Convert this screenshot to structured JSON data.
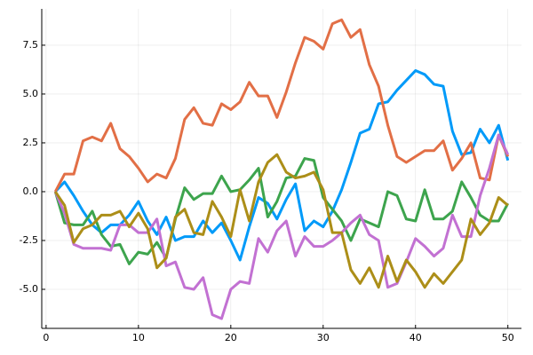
{
  "chart_data": {
    "type": "line",
    "x": [
      1,
      2,
      3,
      4,
      5,
      6,
      7,
      8,
      9,
      10,
      11,
      12,
      13,
      14,
      15,
      16,
      17,
      18,
      19,
      20,
      21,
      22,
      23,
      24,
      25,
      26,
      27,
      28,
      29,
      30,
      31,
      32,
      33,
      34,
      35,
      36,
      37,
      38,
      39,
      40,
      41,
      42,
      43,
      44,
      45,
      46,
      47,
      48,
      49,
      50
    ],
    "series": [
      {
        "color": "#009af9",
        "values": [
          0,
          0.5,
          -0.2,
          -1.0,
          -1.7,
          -2.1,
          -1.7,
          -1.7,
          -1.2,
          -0.5,
          -1.5,
          -2.2,
          -1.3,
          -2.5,
          -2.3,
          -2.3,
          -1.5,
          -2.1,
          -1.6,
          -2.5,
          -3.5,
          -1.8,
          -0.3,
          -0.6,
          -1.4,
          -0.4,
          0.4,
          -2.0,
          -1.5,
          -1.8,
          -1.0,
          0.1,
          1.5,
          3.0,
          3.2,
          4.5,
          4.6,
          5.2,
          5.7,
          6.2,
          6.0,
          5.5,
          5.4,
          3.1,
          1.9,
          2.0,
          3.2,
          2.5,
          3.4,
          1.6
        ]
      },
      {
        "color": "#e26f46",
        "values": [
          0,
          0.9,
          0.9,
          2.6,
          2.8,
          2.6,
          3.5,
          2.2,
          1.8,
          1.2,
          0.5,
          0.9,
          0.7,
          1.7,
          3.7,
          4.3,
          3.5,
          3.4,
          4.5,
          4.2,
          4.6,
          5.6,
          4.9,
          4.9,
          3.8,
          5.1,
          6.6,
          7.9,
          7.7,
          7.3,
          8.6,
          8.8,
          7.9,
          8.3,
          6.5,
          5.4,
          3.4,
          1.8,
          1.5,
          1.8,
          2.1,
          2.1,
          2.6,
          1.1,
          1.7,
          2.5,
          0.7,
          0.6,
          2.9,
          1.8
        ]
      },
      {
        "color": "#3da44d",
        "values": [
          0,
          -1.6,
          -1.7,
          -1.7,
          -1.0,
          -2.2,
          -2.8,
          -2.7,
          -3.7,
          -3.1,
          -3.2,
          -2.6,
          -3.4,
          -1.4,
          0.2,
          -0.4,
          -0.1,
          -0.1,
          0.8,
          0.0,
          0.1,
          0.6,
          1.2,
          -1.3,
          -0.5,
          0.7,
          0.8,
          1.7,
          1.6,
          -0.3,
          -0.9,
          -1.5,
          -2.5,
          -1.4,
          -1.6,
          -1.8,
          0.0,
          -0.2,
          -1.4,
          -1.5,
          0.1,
          -1.4,
          -1.4,
          -1.0,
          0.5,
          -0.3,
          -1.2,
          -1.5,
          -1.5,
          -0.6
        ]
      },
      {
        "color": "#c271d2",
        "values": [
          0,
          -1.1,
          -2.7,
          -2.9,
          -2.9,
          -2.9,
          -3.0,
          -1.7,
          -1.7,
          -2.1,
          -2.1,
          -1.4,
          -3.8,
          -3.6,
          -4.9,
          -5.0,
          -4.4,
          -6.3,
          -6.5,
          -5.0,
          -4.6,
          -4.7,
          -2.4,
          -3.1,
          -2.0,
          -1.5,
          -3.3,
          -2.3,
          -2.8,
          -2.8,
          -2.5,
          -2.1,
          -1.6,
          -1.2,
          -2.2,
          -2.5,
          -4.9,
          -4.7,
          -3.6,
          -2.4,
          -2.8,
          -3.3,
          -2.9,
          -1.2,
          -2.3,
          -2.3,
          -0.2,
          1.2,
          2.9,
          1.9
        ]
      },
      {
        "color": "#ac8e18",
        "values": [
          0,
          -0.7,
          -2.6,
          -1.9,
          -1.7,
          -1.2,
          -1.2,
          -1.0,
          -1.8,
          -1.1,
          -1.9,
          -3.9,
          -3.4,
          -1.3,
          -0.9,
          -2.1,
          -2.2,
          -0.5,
          -1.3,
          -2.3,
          0.1,
          -1.5,
          0.5,
          1.5,
          1.9,
          1.0,
          0.7,
          0.8,
          1.0,
          0.1,
          -2.1,
          -2.1,
          -4.0,
          -4.7,
          -3.9,
          -4.9,
          -3.3,
          -4.6,
          -3.5,
          -4.1,
          -4.9,
          -4.2,
          -4.7,
          -4.1,
          -3.5,
          -1.4,
          -2.2,
          -1.6,
          -0.3,
          -0.7
        ]
      }
    ],
    "xlim": [
      -0.47,
      51.47
    ],
    "ylim": [
      -7.0,
      9.36
    ],
    "xticks": [
      0,
      10,
      20,
      30,
      40,
      50
    ],
    "yticks": [
      {
        "value": -5,
        "label": "-5.0"
      },
      -2.5,
      {
        "value": 0,
        "label": "0.0"
      },
      2.5,
      {
        "value": 5,
        "label": "5.0"
      },
      7.5
    ],
    "grid": true
  }
}
